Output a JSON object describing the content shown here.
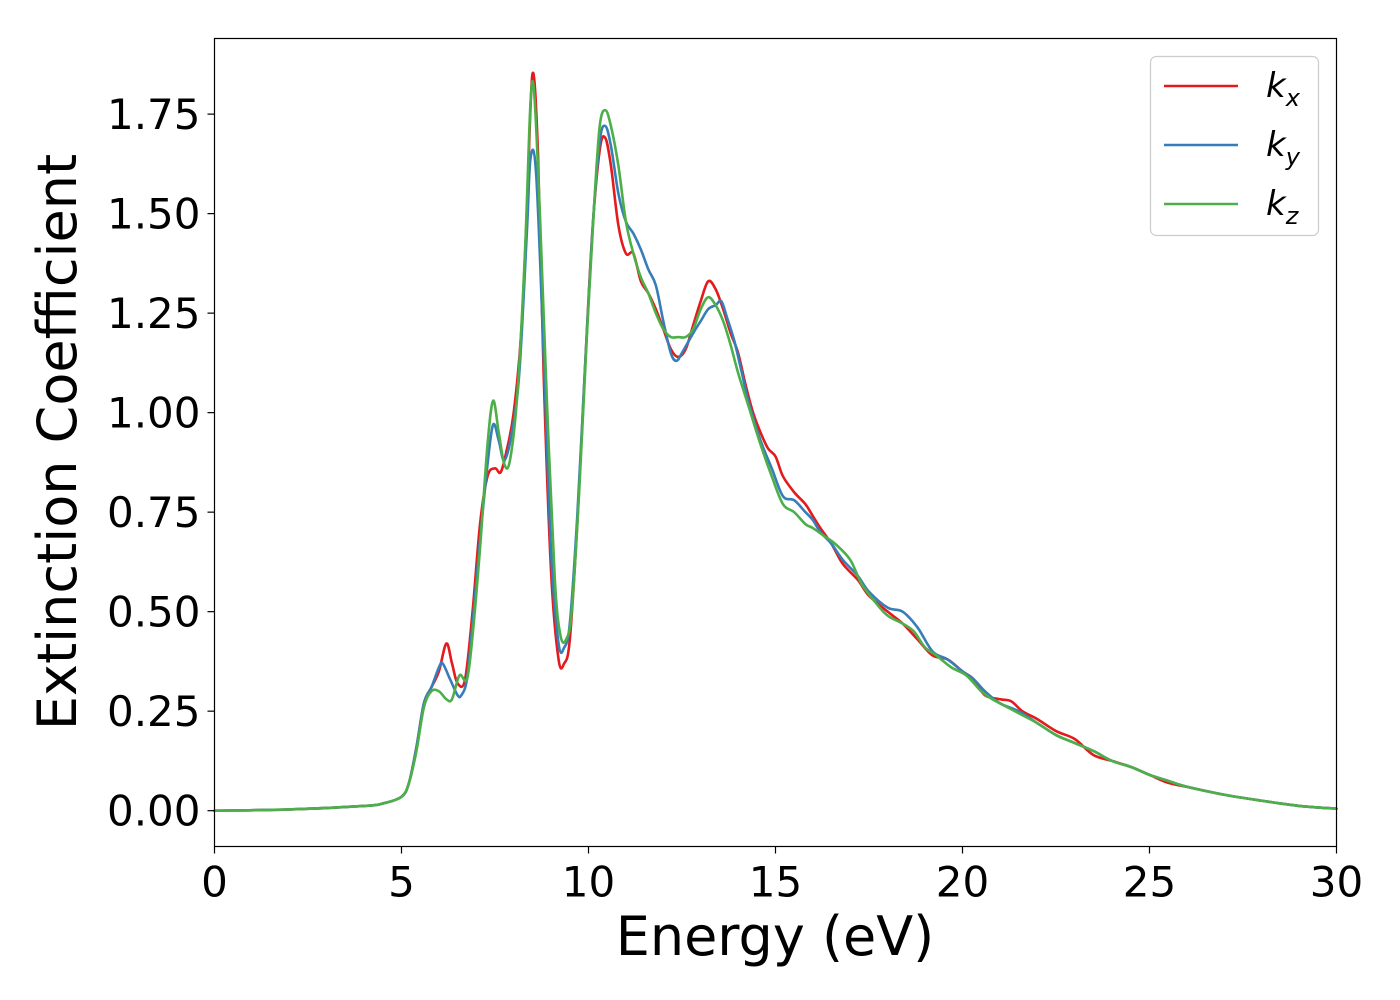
{
  "chart_data": {
    "type": "line",
    "title": "",
    "xlabel": "Energy (eV)",
    "ylabel": "Extinction Coefficient",
    "xlim": [
      0,
      30
    ],
    "ylim": [
      -0.09,
      1.94
    ],
    "xticks": [
      0,
      5,
      10,
      15,
      20,
      25,
      30
    ],
    "xtick_labels": [
      "0",
      "5",
      "10",
      "15",
      "20",
      "25",
      "30"
    ],
    "yticks": [
      0,
      0.25,
      0.5,
      0.75,
      1.0,
      1.25,
      1.5,
      1.75
    ],
    "ytick_labels": [
      "0.00",
      "0.25",
      "0.50",
      "0.75",
      "1.00",
      "1.25",
      "1.50",
      "1.75"
    ],
    "grid": false,
    "legend_position": "top-right",
    "series": [
      {
        "name": "k",
        "subscript": "x",
        "color": "#e41a1c",
        "points": [
          [
            0,
            0.0
          ],
          [
            2,
            0.003
          ],
          [
            4,
            0.012
          ],
          [
            4.5,
            0.018
          ],
          [
            5,
            0.035
          ],
          [
            5.2,
            0.07
          ],
          [
            5.4,
            0.16
          ],
          [
            5.6,
            0.27
          ],
          [
            5.8,
            0.31
          ],
          [
            6.0,
            0.35
          ],
          [
            6.2,
            0.42
          ],
          [
            6.35,
            0.37
          ],
          [
            6.5,
            0.32
          ],
          [
            6.7,
            0.33
          ],
          [
            6.9,
            0.5
          ],
          [
            7.1,
            0.72
          ],
          [
            7.3,
            0.84
          ],
          [
            7.5,
            0.86
          ],
          [
            7.65,
            0.85
          ],
          [
            7.8,
            0.9
          ],
          [
            8.0,
            1.0
          ],
          [
            8.2,
            1.2
          ],
          [
            8.35,
            1.5
          ],
          [
            8.5,
            1.85
          ],
          [
            8.65,
            1.65
          ],
          [
            8.8,
            1.1
          ],
          [
            9.0,
            0.6
          ],
          [
            9.2,
            0.38
          ],
          [
            9.35,
            0.37
          ],
          [
            9.5,
            0.43
          ],
          [
            9.7,
            0.72
          ],
          [
            9.9,
            1.1
          ],
          [
            10.1,
            1.45
          ],
          [
            10.3,
            1.66
          ],
          [
            10.45,
            1.69
          ],
          [
            10.6,
            1.62
          ],
          [
            10.8,
            1.47
          ],
          [
            11.0,
            1.4
          ],
          [
            11.2,
            1.4
          ],
          [
            11.4,
            1.33
          ],
          [
            11.6,
            1.3
          ],
          [
            11.8,
            1.26
          ],
          [
            12.0,
            1.21
          ],
          [
            12.2,
            1.16
          ],
          [
            12.4,
            1.14
          ],
          [
            12.6,
            1.16
          ],
          [
            12.8,
            1.22
          ],
          [
            13.0,
            1.28
          ],
          [
            13.2,
            1.33
          ],
          [
            13.4,
            1.31
          ],
          [
            13.6,
            1.26
          ],
          [
            13.8,
            1.2
          ],
          [
            14.0,
            1.15
          ],
          [
            14.2,
            1.07
          ],
          [
            14.4,
            1.0
          ],
          [
            14.6,
            0.95
          ],
          [
            14.8,
            0.91
          ],
          [
            15.0,
            0.89
          ],
          [
            15.2,
            0.84
          ],
          [
            15.5,
            0.8
          ],
          [
            15.8,
            0.77
          ],
          [
            16.0,
            0.74
          ],
          [
            16.2,
            0.71
          ],
          [
            16.5,
            0.67
          ],
          [
            16.8,
            0.62
          ],
          [
            17.2,
            0.58
          ],
          [
            17.5,
            0.54
          ],
          [
            18.0,
            0.5
          ],
          [
            18.4,
            0.47
          ],
          [
            18.8,
            0.43
          ],
          [
            19.2,
            0.39
          ],
          [
            19.6,
            0.38
          ],
          [
            20.0,
            0.35
          ],
          [
            20.3,
            0.33
          ],
          [
            20.6,
            0.29
          ],
          [
            21.0,
            0.28
          ],
          [
            21.3,
            0.275
          ],
          [
            21.6,
            0.25
          ],
          [
            22.0,
            0.23
          ],
          [
            22.5,
            0.2
          ],
          [
            23.0,
            0.18
          ],
          [
            23.5,
            0.14
          ],
          [
            24.0,
            0.125
          ],
          [
            24.5,
            0.11
          ],
          [
            25.0,
            0.09
          ],
          [
            25.5,
            0.07
          ],
          [
            26.0,
            0.06
          ],
          [
            27.0,
            0.04
          ],
          [
            28.0,
            0.025
          ],
          [
            29.0,
            0.012
          ],
          [
            30.0,
            0.005
          ]
        ]
      },
      {
        "name": "k",
        "subscript": "y",
        "color": "#377eb8",
        "points": [
          [
            0,
            0.0
          ],
          [
            2,
            0.003
          ],
          [
            4,
            0.012
          ],
          [
            4.5,
            0.018
          ],
          [
            5,
            0.035
          ],
          [
            5.2,
            0.07
          ],
          [
            5.4,
            0.16
          ],
          [
            5.6,
            0.27
          ],
          [
            5.8,
            0.31
          ],
          [
            6.0,
            0.36
          ],
          [
            6.1,
            0.37
          ],
          [
            6.3,
            0.33
          ],
          [
            6.5,
            0.29
          ],
          [
            6.6,
            0.29
          ],
          [
            6.75,
            0.33
          ],
          [
            6.9,
            0.47
          ],
          [
            7.1,
            0.68
          ],
          [
            7.3,
            0.87
          ],
          [
            7.45,
            0.97
          ],
          [
            7.6,
            0.93
          ],
          [
            7.75,
            0.88
          ],
          [
            7.95,
            0.95
          ],
          [
            8.15,
            1.1
          ],
          [
            8.35,
            1.45
          ],
          [
            8.45,
            1.64
          ],
          [
            8.6,
            1.6
          ],
          [
            8.8,
            1.15
          ],
          [
            9.0,
            0.65
          ],
          [
            9.2,
            0.42
          ],
          [
            9.35,
            0.41
          ],
          [
            9.5,
            0.47
          ],
          [
            9.7,
            0.74
          ],
          [
            9.9,
            1.1
          ],
          [
            10.1,
            1.45
          ],
          [
            10.3,
            1.68
          ],
          [
            10.45,
            1.72
          ],
          [
            10.6,
            1.67
          ],
          [
            10.8,
            1.55
          ],
          [
            11.0,
            1.48
          ],
          [
            11.2,
            1.45
          ],
          [
            11.4,
            1.41
          ],
          [
            11.6,
            1.36
          ],
          [
            11.8,
            1.32
          ],
          [
            12.0,
            1.23
          ],
          [
            12.2,
            1.15
          ],
          [
            12.35,
            1.13
          ],
          [
            12.5,
            1.15
          ],
          [
            12.8,
            1.2
          ],
          [
            13.0,
            1.23
          ],
          [
            13.2,
            1.26
          ],
          [
            13.4,
            1.27
          ],
          [
            13.55,
            1.28
          ],
          [
            13.7,
            1.24
          ],
          [
            13.9,
            1.18
          ],
          [
            14.1,
            1.1
          ],
          [
            14.3,
            1.02
          ],
          [
            14.6,
            0.93
          ],
          [
            14.9,
            0.86
          ],
          [
            15.2,
            0.79
          ],
          [
            15.5,
            0.78
          ],
          [
            15.8,
            0.75
          ],
          [
            16.0,
            0.73
          ],
          [
            16.2,
            0.7
          ],
          [
            16.5,
            0.67
          ],
          [
            16.8,
            0.63
          ],
          [
            17.2,
            0.59
          ],
          [
            17.5,
            0.55
          ],
          [
            18.0,
            0.51
          ],
          [
            18.4,
            0.5
          ],
          [
            18.8,
            0.46
          ],
          [
            19.2,
            0.4
          ],
          [
            19.6,
            0.38
          ],
          [
            20.0,
            0.35
          ],
          [
            20.3,
            0.33
          ],
          [
            20.6,
            0.3
          ],
          [
            21.0,
            0.27
          ],
          [
            21.5,
            0.25
          ],
          [
            22.0,
            0.22
          ],
          [
            22.5,
            0.19
          ],
          [
            23.0,
            0.17
          ],
          [
            23.5,
            0.15
          ],
          [
            24.0,
            0.125
          ],
          [
            24.5,
            0.11
          ],
          [
            25.0,
            0.09
          ],
          [
            25.5,
            0.075
          ],
          [
            26.0,
            0.06
          ],
          [
            27.0,
            0.04
          ],
          [
            28.0,
            0.025
          ],
          [
            29.0,
            0.012
          ],
          [
            30.0,
            0.005
          ]
        ]
      },
      {
        "name": "k",
        "subscript": "z",
        "color": "#4daf4a",
        "points": [
          [
            0,
            0.0
          ],
          [
            2,
            0.003
          ],
          [
            4,
            0.012
          ],
          [
            4.5,
            0.018
          ],
          [
            5,
            0.035
          ],
          [
            5.2,
            0.07
          ],
          [
            5.4,
            0.15
          ],
          [
            5.6,
            0.26
          ],
          [
            5.8,
            0.3
          ],
          [
            6.0,
            0.3
          ],
          [
            6.2,
            0.28
          ],
          [
            6.35,
            0.28
          ],
          [
            6.55,
            0.34
          ],
          [
            6.75,
            0.33
          ],
          [
            6.9,
            0.44
          ],
          [
            7.1,
            0.66
          ],
          [
            7.3,
            0.92
          ],
          [
            7.45,
            1.03
          ],
          [
            7.6,
            0.95
          ],
          [
            7.75,
            0.87
          ],
          [
            7.9,
            0.88
          ],
          [
            8.1,
            1.05
          ],
          [
            8.3,
            1.4
          ],
          [
            8.45,
            1.78
          ],
          [
            8.55,
            1.8
          ],
          [
            8.7,
            1.5
          ],
          [
            8.9,
            1.0
          ],
          [
            9.1,
            0.58
          ],
          [
            9.25,
            0.44
          ],
          [
            9.4,
            0.43
          ],
          [
            9.55,
            0.5
          ],
          [
            9.75,
            0.8
          ],
          [
            9.95,
            1.18
          ],
          [
            10.15,
            1.52
          ],
          [
            10.3,
            1.72
          ],
          [
            10.45,
            1.76
          ],
          [
            10.6,
            1.72
          ],
          [
            10.8,
            1.62
          ],
          [
            11.0,
            1.48
          ],
          [
            11.2,
            1.4
          ],
          [
            11.4,
            1.34
          ],
          [
            11.6,
            1.3
          ],
          [
            11.8,
            1.25
          ],
          [
            12.0,
            1.21
          ],
          [
            12.2,
            1.19
          ],
          [
            12.4,
            1.19
          ],
          [
            12.6,
            1.19
          ],
          [
            12.8,
            1.21
          ],
          [
            13.0,
            1.26
          ],
          [
            13.2,
            1.29
          ],
          [
            13.4,
            1.27
          ],
          [
            13.6,
            1.23
          ],
          [
            13.8,
            1.17
          ],
          [
            14.0,
            1.1
          ],
          [
            14.3,
            1.01
          ],
          [
            14.6,
            0.92
          ],
          [
            14.9,
            0.84
          ],
          [
            15.2,
            0.77
          ],
          [
            15.5,
            0.75
          ],
          [
            15.8,
            0.72
          ],
          [
            16.0,
            0.71
          ],
          [
            16.3,
            0.69
          ],
          [
            16.6,
            0.67
          ],
          [
            17.0,
            0.63
          ],
          [
            17.3,
            0.57
          ],
          [
            17.7,
            0.52
          ],
          [
            18.0,
            0.49
          ],
          [
            18.4,
            0.47
          ],
          [
            18.7,
            0.45
          ],
          [
            19.0,
            0.41
          ],
          [
            19.3,
            0.39
          ],
          [
            19.7,
            0.36
          ],
          [
            20.1,
            0.34
          ],
          [
            20.5,
            0.3
          ],
          [
            20.8,
            0.28
          ],
          [
            21.2,
            0.26
          ],
          [
            21.6,
            0.24
          ],
          [
            22.0,
            0.22
          ],
          [
            22.5,
            0.19
          ],
          [
            23.0,
            0.17
          ],
          [
            23.5,
            0.15
          ],
          [
            24.0,
            0.125
          ],
          [
            24.5,
            0.11
          ],
          [
            25.0,
            0.09
          ],
          [
            25.5,
            0.075
          ],
          [
            26.0,
            0.06
          ],
          [
            27.0,
            0.04
          ],
          [
            28.0,
            0.025
          ],
          [
            29.0,
            0.012
          ],
          [
            30.0,
            0.005
          ]
        ]
      }
    ]
  }
}
